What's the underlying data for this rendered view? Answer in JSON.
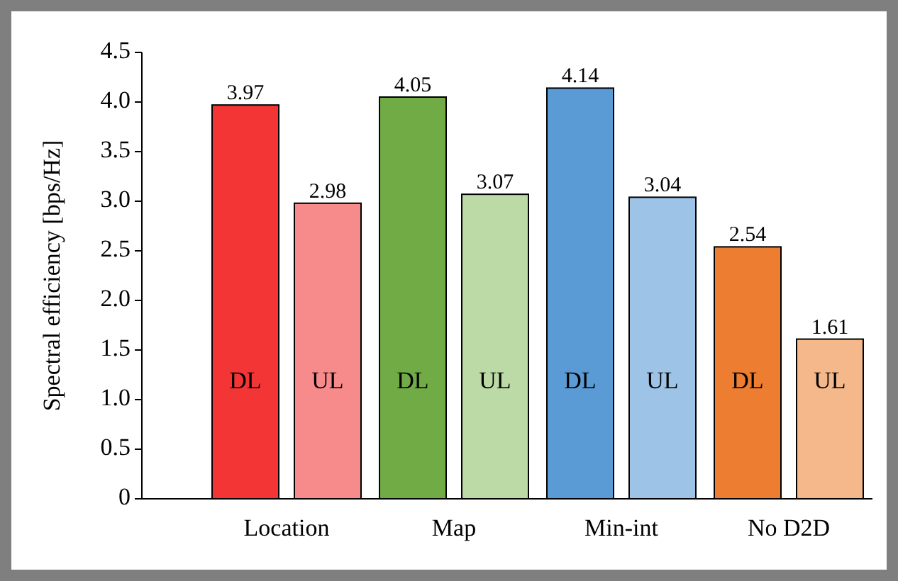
{
  "chart_data": {
    "type": "bar",
    "ylabel": "Spectral efficiency  [bps/Hz]",
    "categories": [
      "Location",
      "Map",
      "Min-int",
      "No D2D"
    ],
    "series": [
      {
        "name": "DL",
        "values": [
          3.97,
          4.05,
          4.14,
          2.54
        ],
        "colors": [
          "#f43535",
          "#70ab46",
          "#5b9bd5",
          "#ed7d31"
        ]
      },
      {
        "name": "UL",
        "values": [
          2.98,
          3.07,
          3.04,
          1.61
        ],
        "colors": [
          "#f78a8a",
          "#bcdaa5",
          "#9dc3e6",
          "#f4b88b"
        ]
      }
    ],
    "ylim": [
      0,
      4.5
    ],
    "yticks": [
      0,
      0.5,
      {
        "value": 1,
        "label": "1.0"
      },
      1.5,
      {
        "value": 2,
        "label": "2.0"
      },
      2.5,
      {
        "value": 3,
        "label": "3.0"
      },
      3.5,
      {
        "value": 4,
        "label": "4.0"
      },
      4.5
    ],
    "data_labels": true
  }
}
